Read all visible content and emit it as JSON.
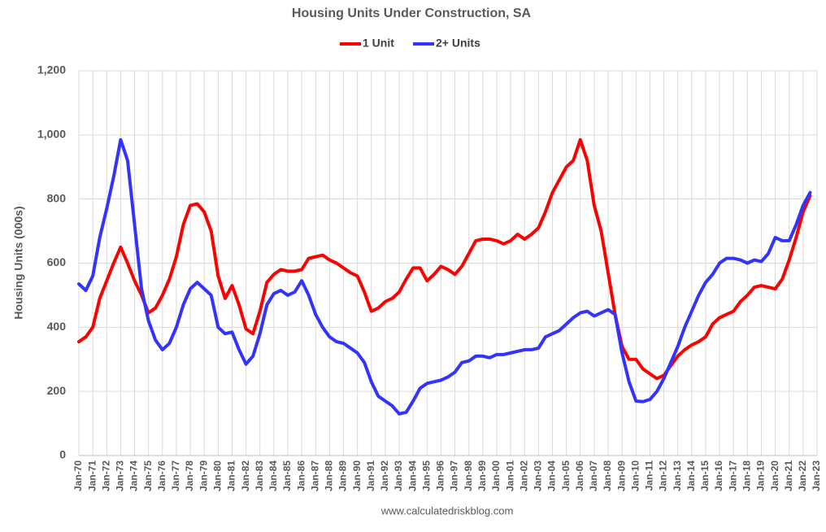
{
  "chart_data": {
    "type": "line",
    "title": "Housing Units Under Construction, SA",
    "y_label": "Housing Units (000s)",
    "source": "www.calculatedriskblog.com",
    "categories": [
      "Jan-70",
      null,
      "Jan-71",
      null,
      "Jan-72",
      null,
      "Jan-73",
      null,
      "Jan-74",
      null,
      "Jan-75",
      null,
      "Jan-76",
      null,
      "Jan-77",
      null,
      "Jan-78",
      null,
      "Jan-79",
      null,
      "Jan-80",
      null,
      "Jan-81",
      null,
      "Jan-82",
      null,
      "Jan-83",
      null,
      "Jan-84",
      null,
      "Jan-85",
      null,
      "Jan-86",
      null,
      "Jan-87",
      null,
      "Jan-88",
      null,
      "Jan-89",
      null,
      "Jan-90",
      null,
      "Jan-91",
      null,
      "Jan-92",
      null,
      "Jan-93",
      null,
      "Jan-94",
      null,
      "Jan-95",
      null,
      "Jan-96",
      null,
      "Jan-97",
      null,
      "Jan-98",
      null,
      "Jan-99",
      null,
      "Jan-00",
      null,
      "Jan-01",
      null,
      "Jan-02",
      null,
      "Jan-03",
      null,
      "Jan-04",
      null,
      "Jan-05",
      null,
      "Jan-06",
      null,
      "Jan-07",
      null,
      "Jan-08",
      null,
      "Jan-09",
      null,
      "Jan-10",
      null,
      "Jan-11",
      null,
      "Jan-12",
      null,
      "Jan-13",
      null,
      "Jan-14",
      null,
      "Jan-15",
      null,
      "Jan-16",
      null,
      "Jan-17",
      null,
      "Jan-18",
      null,
      "Jan-19",
      null,
      "Jan-20",
      null,
      "Jan-21",
      null,
      "Jan-22",
      null,
      "Jan-23"
    ],
    "series": [
      {
        "name": "1 Unit",
        "color": "#ff0000",
        "values": [
          355,
          370,
          400,
          490,
          545,
          600,
          650,
          600,
          545,
          500,
          445,
          460,
          500,
          550,
          620,
          720,
          780,
          785,
          760,
          700,
          560,
          490,
          530,
          470,
          395,
          380,
          450,
          540,
          565,
          580,
          575,
          575,
          580,
          615,
          620,
          625,
          610,
          600,
          585,
          570,
          560,
          510,
          450,
          460,
          480,
          490,
          510,
          550,
          585,
          585,
          545,
          565,
          590,
          580,
          565,
          590,
          630,
          670,
          675,
          675,
          670,
          660,
          670,
          690,
          675,
          690,
          710,
          760,
          820,
          860,
          900,
          920,
          985,
          920,
          780,
          700,
          570,
          440,
          340,
          300,
          300,
          270,
          255,
          240,
          250,
          280,
          310,
          330,
          345,
          355,
          370,
          410,
          430,
          440,
          450,
          480,
          500,
          525,
          530,
          525,
          520,
          550,
          610,
          680,
          760,
          810,
          null
        ]
      },
      {
        "name": "2+ Units",
        "color": "#3333ff",
        "values": [
          535,
          515,
          560,
          680,
          770,
          870,
          985,
          920,
          720,
          520,
          420,
          360,
          330,
          350,
          400,
          470,
          520,
          540,
          520,
          500,
          400,
          380,
          385,
          330,
          285,
          310,
          380,
          470,
          505,
          515,
          500,
          510,
          545,
          500,
          440,
          400,
          370,
          355,
          350,
          335,
          320,
          290,
          230,
          185,
          170,
          155,
          130,
          135,
          170,
          210,
          225,
          230,
          235,
          245,
          260,
          290,
          295,
          310,
          310,
          305,
          315,
          315,
          320,
          325,
          330,
          330,
          335,
          370,
          380,
          390,
          410,
          430,
          445,
          450,
          435,
          445,
          455,
          440,
          320,
          230,
          170,
          168,
          175,
          200,
          240,
          290,
          340,
          400,
          450,
          500,
          540,
          565,
          600,
          615,
          615,
          610,
          600,
          610,
          605,
          630,
          680,
          670,
          670,
          720,
          780,
          820,
          null
        ]
      }
    ],
    "ylim": [
      0,
      1200
    ],
    "yticks": [
      0,
      200,
      400,
      600,
      800,
      {
        "value": 1000,
        "label": "1,000"
      },
      {
        "value": 1200,
        "label": "1,200"
      }
    ],
    "grid": true,
    "legend": "top"
  }
}
